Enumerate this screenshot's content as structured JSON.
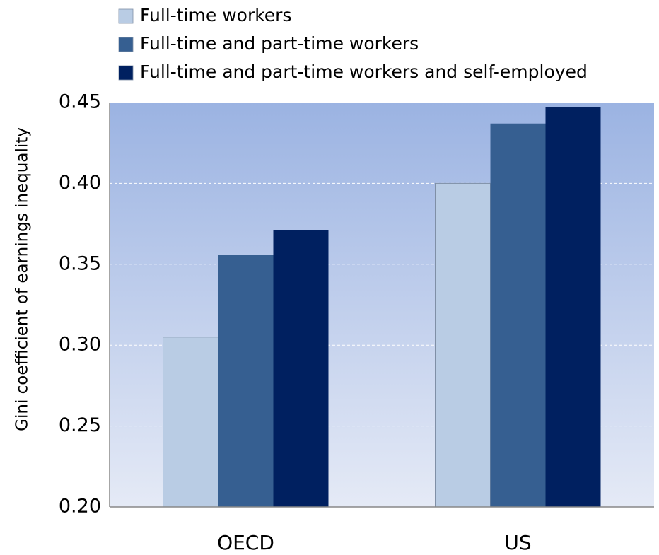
{
  "chart_data": {
    "type": "bar",
    "y_label": "Gini coefficient of earnings inequality",
    "categories": [
      "OECD",
      "US"
    ],
    "series": [
      {
        "name": "Full-time workers",
        "color": "#b9cce4",
        "values": [
          0.305,
          0.4
        ]
      },
      {
        "name": "Full-time and part-time workers",
        "color": "#365f91",
        "values": [
          0.356,
          0.437
        ]
      },
      {
        "name": "Full-time and part-time workers and self-employed",
        "color": "#002060",
        "values": [
          0.371,
          0.447
        ]
      }
    ],
    "ylim": [
      0.2,
      0.45
    ],
    "yticks": [
      {
        "value": 0.2,
        "label": "0.20"
      },
      0.25,
      {
        "value": 0.3,
        "label": "0.30"
      },
      0.35,
      {
        "value": 0.4,
        "label": "0.40"
      },
      0.45
    ],
    "grid": true,
    "legend": "top-left"
  }
}
